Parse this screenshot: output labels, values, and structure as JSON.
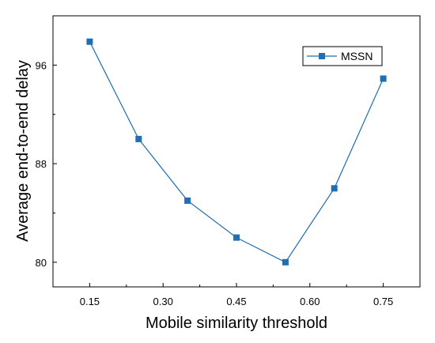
{
  "chart_data": {
    "type": "line",
    "title": "",
    "xlabel": "Mobile similarity threshold",
    "ylabel": "Average end-to-end delay",
    "xlim": [
      0.075,
      0.825
    ],
    "ylim": [
      78,
      100
    ],
    "x_ticks": [
      0.15,
      0.3,
      0.45,
      0.6,
      0.75
    ],
    "x_tick_labels": [
      "0.15",
      "0.30",
      "0.45",
      "0.60",
      "0.75"
    ],
    "y_ticks": [
      80,
      88,
      96
    ],
    "y_tick_labels": [
      "80",
      "88",
      "96"
    ],
    "grid": false,
    "legend_position": "top-right",
    "series": [
      {
        "name": "MSSN",
        "color": "#1f6fb2",
        "marker": "square",
        "x": [
          0.15,
          0.25,
          0.35,
          0.45,
          0.55,
          0.65,
          0.75
        ],
        "y": [
          97.9,
          90.0,
          85.0,
          82.0,
          80.0,
          86.0,
          94.9
        ]
      }
    ]
  }
}
